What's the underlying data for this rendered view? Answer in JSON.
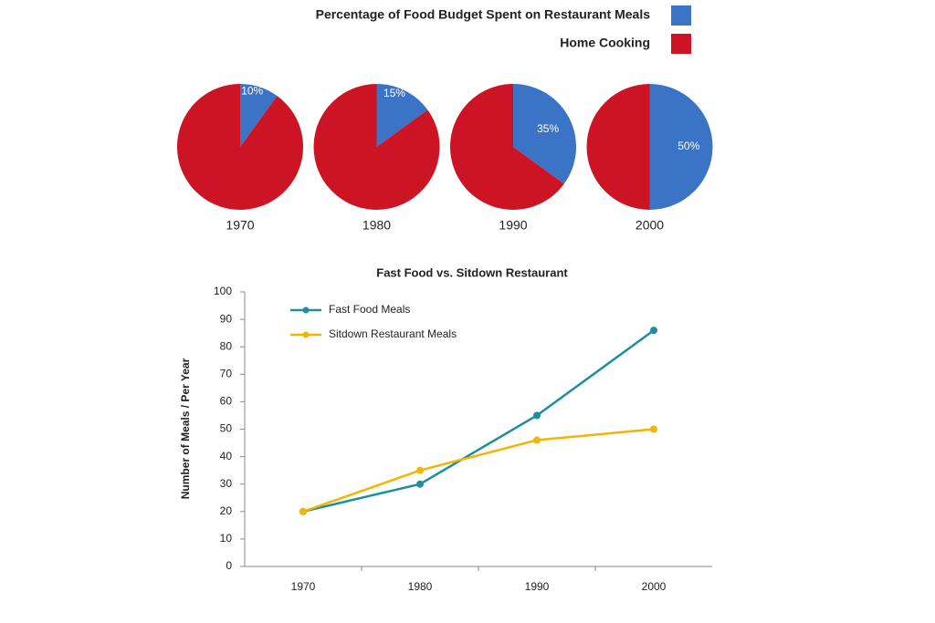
{
  "chart_data": [
    {
      "type": "pie",
      "categories": [
        "1970",
        "1980",
        "1990",
        "2000"
      ],
      "series": [
        {
          "name": "Percentage of Food Budget Spent on Restaurant Meals",
          "color": "#3b74c6",
          "values": [
            10,
            15,
            35,
            50
          ],
          "value_labels": [
            "10%",
            "15%",
            "35%",
            "50%"
          ]
        },
        {
          "name": "Home Cooking",
          "color": "#cc1424",
          "values": [
            90,
            85,
            65,
            50
          ]
        }
      ],
      "legend": "top-right"
    },
    {
      "type": "line",
      "title": "Fast Food vs. Sitdown Restaurant",
      "y_label": "Number of Meals / Per Year",
      "categories": [
        "1970",
        "1980",
        "1990",
        "2000"
      ],
      "series": [
        {
          "name": "Fast Food Meals",
          "color": "#1a8fa0",
          "values": [
            20,
            30,
            55,
            86
          ]
        },
        {
          "name": "Sitdown Restaurant Meals",
          "color": "#f4b400",
          "values": [
            20,
            35,
            46,
            50
          ]
        }
      ],
      "ylim": [
        0,
        100
      ],
      "yticks": [
        0,
        10,
        20,
        30,
        40,
        50,
        60,
        70,
        80,
        90,
        100
      ],
      "grid": false,
      "legend": "top-left"
    }
  ]
}
